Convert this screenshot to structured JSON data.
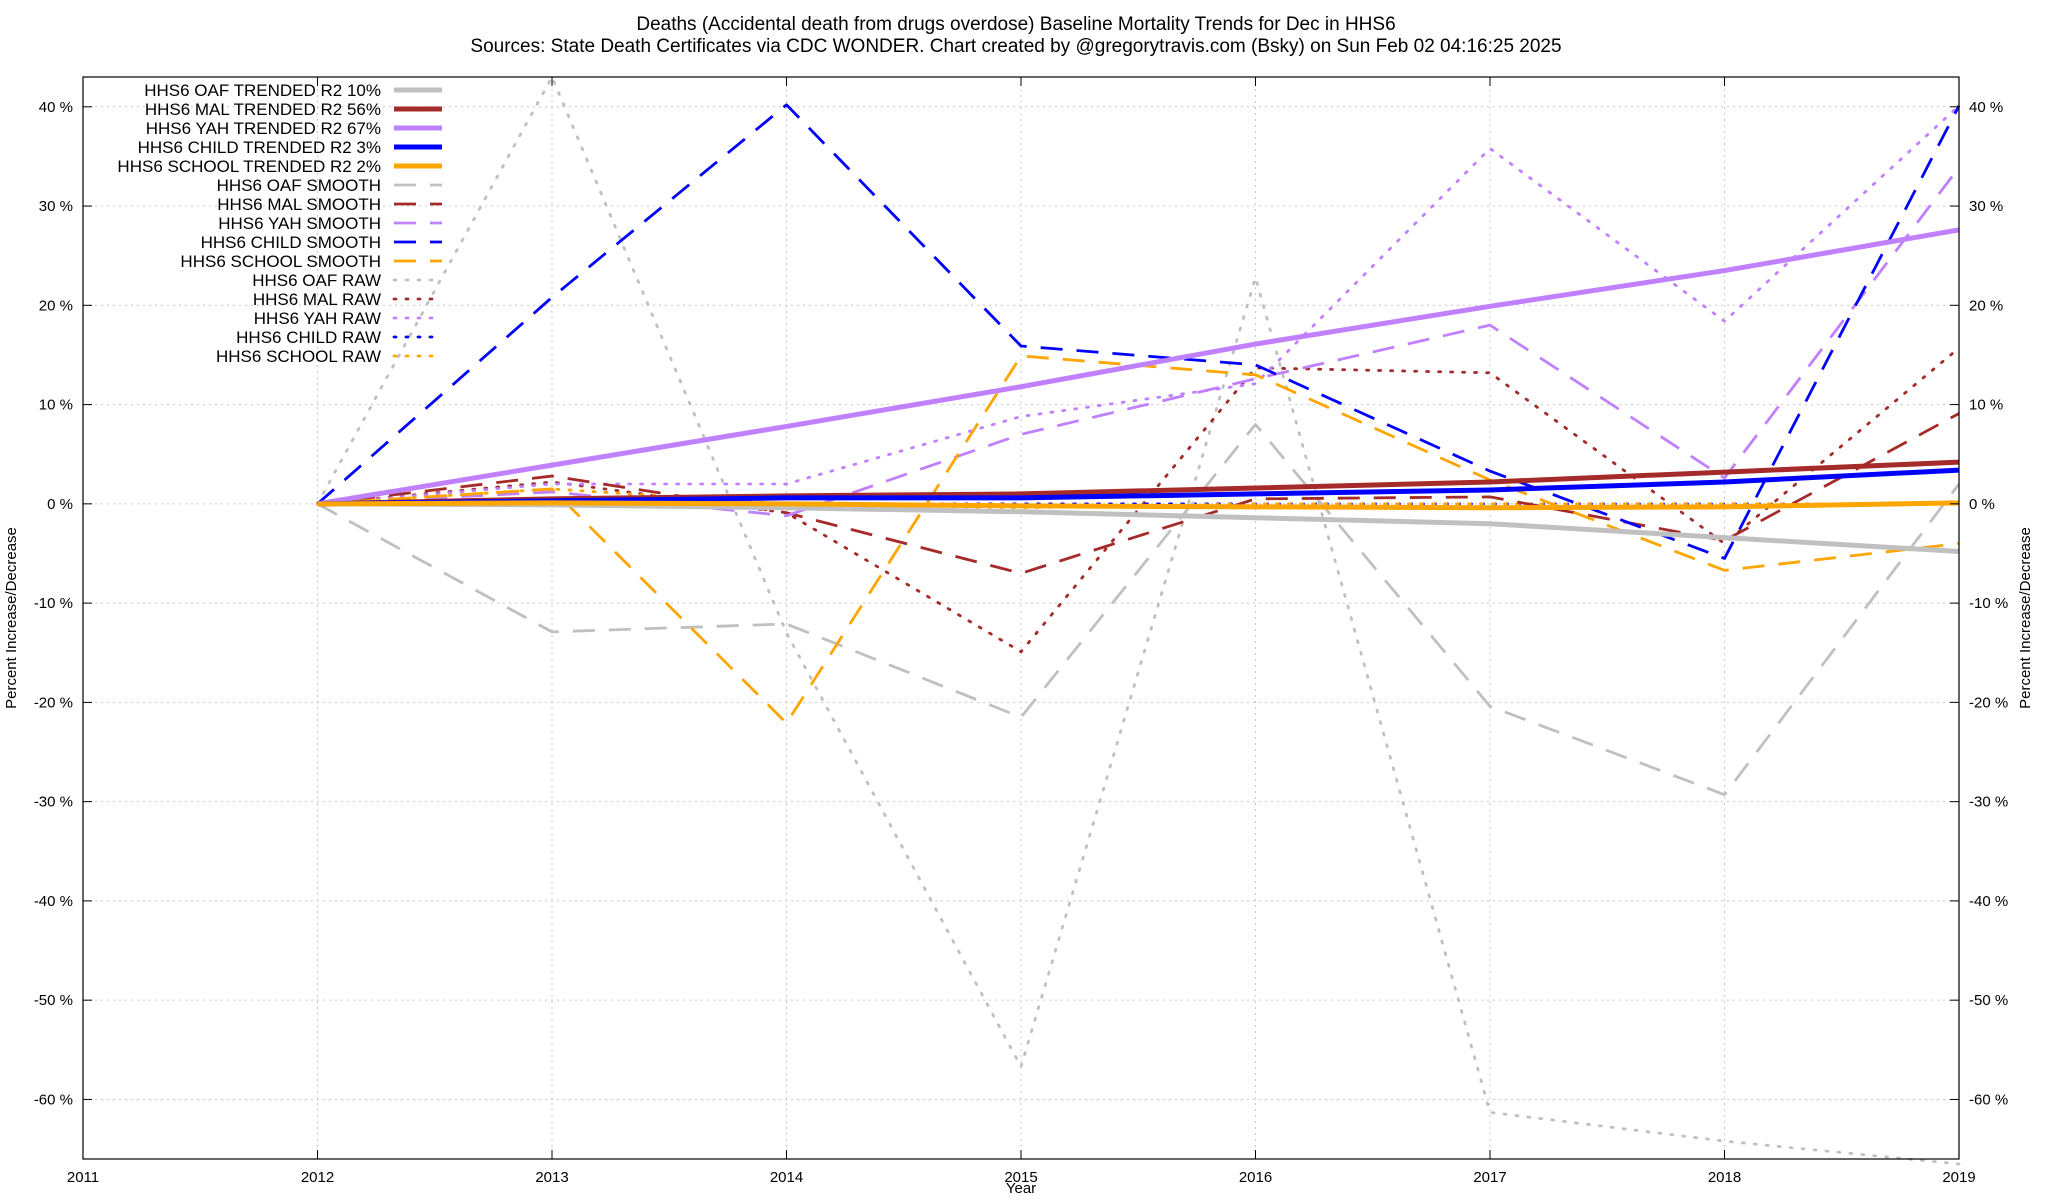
{
  "chart_data": {
    "type": "line",
    "title_line1": "Deaths (Accidental death from drugs overdose)  Baseline Mortality Trends for Dec in HHS6",
    "title_line2": "Sources: State Death Certificates via CDC WONDER.              Chart created by @gregorytravis.com (Bsky) on Sun Feb 02 04:16:25 2025",
    "xlabel": "Year",
    "ylabel_left": "Percent Increase/Decrease",
    "ylabel_right": "Percent Increase/Decrease",
    "xlim": [
      2011,
      2019
    ],
    "ylim": [
      -66,
      43
    ],
    "x_ticks": [
      2011,
      2012,
      2013,
      2014,
      2015,
      2016,
      2017,
      2018,
      2019
    ],
    "x_tick_labels": [
      "2011",
      "2012",
      "2013",
      "2014",
      "2015",
      "2016",
      "2017",
      "2018",
      "2019"
    ],
    "y_ticks": [
      40,
      30,
      20,
      10,
      0,
      -10,
      -20,
      -30,
      -40,
      -50,
      -60
    ],
    "y_tick_labels": [
      "40 %",
      "30 %",
      "20 %",
      "10 %",
      "0 %",
      "-10 %",
      "-20 %",
      "-30 %",
      "-40 %",
      "-50 %",
      "-60 %"
    ],
    "grid": true,
    "legend_position": "top-left",
    "x": [
      2012,
      2013,
      2014,
      2015,
      2016,
      2017,
      2018,
      2019
    ],
    "series": [
      {
        "name": "HHS6 OAF TRENDED R2  10%",
        "style": "solid",
        "color": "#c0c0c0",
        "values": [
          0,
          -0.1,
          -0.4,
          -0.8,
          -1.4,
          -2.0,
          -3.4,
          -4.8
        ]
      },
      {
        "name": "HHS6 MAL TRENDED R2  56%",
        "style": "solid",
        "color": "#a52a2a",
        "values": [
          0,
          0.5,
          0.8,
          1.0,
          1.6,
          2.2,
          3.2,
          4.2
        ]
      },
      {
        "name": "HHS6 YAH TRENDED R2  67%",
        "style": "solid",
        "color": "#c080ff",
        "values": [
          0,
          3.9,
          7.8,
          11.8,
          16.1,
          19.9,
          23.5,
          27.6
        ]
      },
      {
        "name": "HHS6 CHILD TRENDED R2   3%",
        "style": "solid",
        "color": "#0000ff",
        "values": [
          0,
          0.3,
          0.6,
          0.6,
          1.0,
          1.4,
          2.2,
          3.4
        ]
      },
      {
        "name": "HHS6 SCHOOL TRENDED R2   2%",
        "style": "solid",
        "color": "#ffa500",
        "values": [
          0,
          0.1,
          0.0,
          -0.2,
          -0.3,
          -0.4,
          -0.3,
          0.1
        ]
      },
      {
        "name": "HHS6 OAF SMOOTH",
        "style": "dashed",
        "color": "#c0c0c0",
        "values": [
          0,
          -12.9,
          -12.1,
          -21.5,
          8.0,
          -20.4,
          -29.3,
          2.0
        ]
      },
      {
        "name": "HHS6 MAL SMOOTH",
        "style": "dashed",
        "color": "#a52a2a",
        "values": [
          0,
          2.8,
          -0.9,
          -7.0,
          0.5,
          0.7,
          -3.7,
          9.1
        ]
      },
      {
        "name": "HHS6 YAH SMOOTH",
        "style": "dashed",
        "color": "#c080ff",
        "values": [
          0,
          1.2,
          -1.2,
          7.0,
          12.6,
          18.0,
          2.6,
          33.9
        ]
      },
      {
        "name": "HHS6 CHILD SMOOTH",
        "style": "dashed",
        "color": "#0000ff",
        "values": [
          0,
          20.8,
          40.2,
          15.9,
          14.0,
          3.3,
          -5.5,
          40.1
        ]
      },
      {
        "name": "HHS6 SCHOOL SMOOTH",
        "style": "dashed",
        "color": "#ffa500",
        "values": [
          0,
          1.5,
          -22.1,
          14.9,
          13.0,
          2.4,
          -6.7,
          -4.0
        ]
      },
      {
        "name": "HHS6 OAF RAW",
        "style": "dotted",
        "color": "#c0c0c0",
        "values": [
          0,
          43.0,
          -13.0,
          -56.7,
          22.8,
          -61.3,
          -64.2,
          -66.5
        ]
      },
      {
        "name": "HHS6 MAL RAW",
        "style": "dotted",
        "color": "#a52a2a",
        "values": [
          0,
          2.2,
          -0.9,
          -14.9,
          13.7,
          13.2,
          -4.0,
          15.7
        ]
      },
      {
        "name": "HHS6 YAH RAW",
        "style": "dotted",
        "color": "#c080ff",
        "values": [
          0,
          2.0,
          2.0,
          8.8,
          12.1,
          35.8,
          18.4,
          40.1
        ]
      },
      {
        "name": "HHS6 CHILD RAW",
        "style": "dotted",
        "color": "#0000ff",
        "values": [
          0,
          0,
          0,
          0,
          0,
          0,
          0,
          0
        ]
      },
      {
        "name": "HHS6 SCHOOL RAW",
        "style": "dotted",
        "color": "#ffa500",
        "values": [
          0,
          1.5,
          0,
          -0.4,
          0,
          0,
          0,
          0
        ]
      }
    ]
  }
}
